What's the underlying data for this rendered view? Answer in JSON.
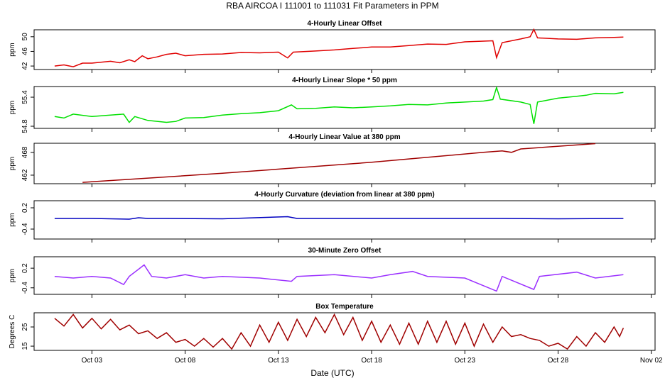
{
  "title": "RBA   AIRCOA I   111001 to 111031   Fit Parameters in PPM",
  "x_label": "Date (UTC)",
  "chart_data": [
    {
      "type": "line",
      "title": "4-Hourly Linear Offset",
      "y_label": "ppm",
      "color": "#e00000",
      "xlim": [
        -0.1,
        33.2
      ],
      "ylim": [
        41.05,
        51.9
      ],
      "yticks": [
        42,
        46,
        50
      ],
      "x": [
        1,
        1.5,
        2,
        2.5,
        3,
        4,
        4.5,
        5,
        5.3,
        5.7,
        6,
        6.5,
        7,
        7.5,
        8,
        9,
        10,
        11,
        12,
        13,
        13.5,
        13.8,
        15,
        16,
        17,
        18,
        19,
        20,
        21,
        22,
        23,
        24,
        24.5,
        24.7,
        25,
        26,
        26.5,
        26.7,
        26.9,
        28,
        29,
        30,
        31,
        31.5
      ],
      "values": [
        42,
        42.3,
        41.8,
        42.8,
        42.8,
        43.3,
        42.9,
        43.7,
        43.2,
        44.8,
        44,
        44.5,
        45.2,
        45.5,
        44.8,
        45.2,
        45.3,
        45.7,
        45.6,
        45.8,
        44.2,
        45.8,
        46.1,
        46.4,
        46.8,
        47.2,
        47.2,
        47.6,
        48.0,
        47.9,
        48.6,
        48.8,
        48.9,
        44.3,
        48.4,
        49.4,
        50,
        52,
        49.7,
        49.4,
        49.3,
        49.7,
        49.8,
        49.9
      ]
    },
    {
      "type": "line",
      "title": "4-Hourly Linear Slope * 50 ppm",
      "y_label": "ppm",
      "color": "#00e000",
      "xlim": [
        -0.1,
        33.2
      ],
      "ylim": [
        54.756,
        55.62
      ],
      "yticks": [
        54.8,
        55.4
      ],
      "x": [
        1,
        1.5,
        2,
        3,
        4,
        4.7,
        5,
        5.3,
        6,
        7,
        7.5,
        8,
        9,
        10,
        11,
        12,
        13,
        13.7,
        14,
        15,
        16,
        17,
        18,
        19,
        20,
        21,
        22,
        23,
        24,
        24.5,
        24.7,
        24.9,
        26,
        26.5,
        26.7,
        26.9,
        28,
        29,
        29.5,
        30,
        31,
        31.5
      ],
      "values": [
        55.0,
        54.97,
        55.05,
        55.0,
        55.03,
        55.05,
        54.88,
        55.0,
        54.92,
        54.88,
        54.9,
        54.97,
        54.98,
        55.03,
        55.06,
        55.08,
        55.12,
        55.24,
        55.16,
        55.17,
        55.2,
        55.18,
        55.2,
        55.22,
        55.25,
        55.24,
        55.28,
        55.3,
        55.32,
        55.35,
        55.6,
        55.36,
        55.3,
        55.25,
        54.85,
        55.3,
        55.38,
        55.42,
        55.44,
        55.48,
        55.47,
        55.5
      ]
    },
    {
      "type": "line",
      "title": "4-Hourly Linear Value at 380 ppm",
      "y_label": "ppm",
      "color": "#a00000",
      "xlim": [
        -0.1,
        33.2
      ],
      "ylim": [
        459.75,
        470.4
      ],
      "yticks": [
        462,
        468
      ],
      "x": [
        2.5,
        10,
        18,
        24,
        25,
        25.5,
        26,
        30
      ],
      "values": [
        460.1,
        462.5,
        465.4,
        468.0,
        468.4,
        468.0,
        468.9,
        470.3
      ]
    },
    {
      "type": "line",
      "title": "4-Hourly Curvature (deviation from linear at 380 ppm)",
      "y_label": "ppm",
      "color": "#0000c0",
      "xlim": [
        -0.1,
        33.2
      ],
      "ylim": [
        -0.68,
        0.4
      ],
      "yticks": [
        -0.4,
        0.2
      ],
      "x": [
        1,
        3,
        5,
        5.5,
        6,
        7,
        10,
        13.5,
        14,
        17,
        20,
        25,
        28,
        31.5
      ],
      "values": [
        -0.1,
        -0.1,
        -0.12,
        -0.08,
        -0.1,
        -0.1,
        -0.11,
        -0.05,
        -0.1,
        -0.1,
        -0.1,
        -0.1,
        -0.11,
        -0.1
      ]
    },
    {
      "type": "line",
      "title": "30-Minute Zero Offset",
      "y_label": "ppm",
      "color": "#9b30ff",
      "xlim": [
        -0.1,
        33.2
      ],
      "ylim": [
        -0.6,
        0.55
      ],
      "yticks": [
        -0.4,
        0.2
      ],
      "x": [
        1,
        2,
        3,
        4,
        4.7,
        5,
        5.8,
        6.2,
        7,
        8,
        9,
        10,
        12,
        13.7,
        14,
        16,
        18,
        19,
        20.2,
        21,
        23,
        24.7,
        25,
        26.7,
        27,
        29,
        30,
        31.5
      ],
      "values": [
        -0.05,
        -0.1,
        -0.05,
        -0.1,
        -0.3,
        -0.05,
        0.3,
        -0.05,
        -0.1,
        0,
        -0.1,
        -0.05,
        -0.1,
        -0.2,
        -0.05,
        0,
        -0.1,
        0,
        0.1,
        -0.05,
        -0.1,
        -0.5,
        -0.05,
        -0.45,
        -0.05,
        0.08,
        -0.1,
        0
      ]
    },
    {
      "type": "line",
      "title": "Box Temperature",
      "y_label": "Degrees C",
      "color": "#a00000",
      "xlim": [
        -0.1,
        33.2
      ],
      "ylim": [
        12.8,
        32.4
      ],
      "yticks": [
        15,
        25
      ],
      "xticks": [
        {
          "value": 3,
          "label": "Oct 03"
        },
        {
          "value": 8,
          "label": "Oct 08"
        },
        {
          "value": 13,
          "label": "Oct 13"
        },
        {
          "value": 18,
          "label": "Oct 18"
        },
        {
          "value": 23,
          "label": "Oct 23"
        },
        {
          "value": 28,
          "label": "Oct 28"
        },
        {
          "value": 33,
          "label": "Nov 02"
        }
      ],
      "x": [
        1,
        1.5,
        2,
        2.5,
        3,
        3.5,
        4,
        4.5,
        5,
        5.5,
        6,
        6.5,
        7,
        7.5,
        8,
        8.5,
        9,
        9.5,
        10,
        10.5,
        11,
        11.5,
        12,
        12.5,
        13,
        13.5,
        14,
        14.5,
        15,
        15.5,
        16,
        16.5,
        17,
        17.5,
        18,
        18.5,
        19,
        19.5,
        20,
        20.5,
        21,
        21.5,
        22,
        22.5,
        23,
        23.5,
        24,
        24.5,
        25,
        25.5,
        26,
        26.5,
        27,
        27.5,
        28,
        28.5,
        29,
        29.5,
        30,
        30.5,
        31,
        31.3,
        31.5
      ],
      "values": [
        29.5,
        25.5,
        31.5,
        24.5,
        29.5,
        24,
        29,
        23.5,
        26,
        21.5,
        23,
        19,
        22,
        17,
        18.5,
        15,
        19,
        14.5,
        19,
        13.5,
        22,
        15,
        26,
        17,
        27.5,
        18,
        29,
        20,
        30,
        22,
        31.5,
        21,
        30,
        18,
        28,
        17,
        26,
        16,
        27,
        16,
        28,
        17,
        28,
        16,
        27,
        15,
        26.5,
        17,
        25,
        20,
        21,
        19,
        18,
        15,
        16.5,
        13.5,
        20,
        15,
        22,
        17,
        25,
        20,
        24.5
      ]
    }
  ]
}
